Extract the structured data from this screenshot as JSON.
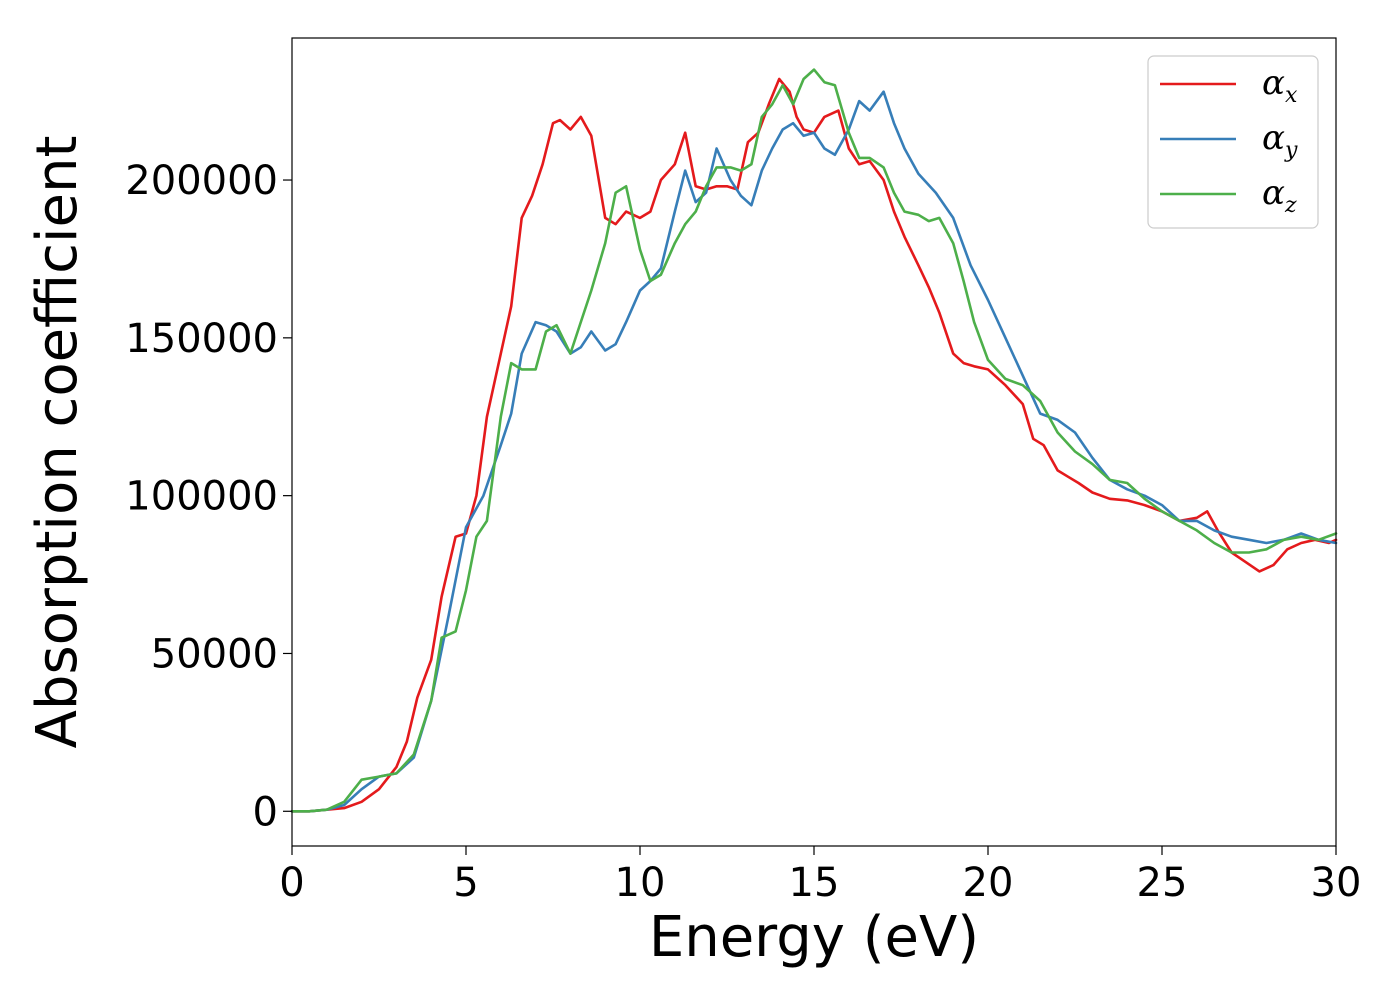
{
  "chart_data": {
    "type": "line",
    "title": "",
    "xlabel": "Energy (eV)",
    "ylabel": "Absorption coefficient",
    "xlim": [
      0,
      30
    ],
    "ylim": [
      -11000,
      245000
    ],
    "xticks": [
      "0",
      "5",
      "10",
      "15",
      "20",
      "25",
      "30"
    ],
    "yticks": [
      "0",
      "50000",
      "100000",
      "150000",
      "200000"
    ],
    "grid": false,
    "legend_position": "top-right",
    "series": [
      {
        "name": "α",
        "subscript": "x",
        "color": "#e41a1c",
        "x": [
          0,
          0.5,
          1,
          1.5,
          2,
          2.5,
          3,
          3.3,
          3.6,
          4,
          4.3,
          4.7,
          5,
          5.3,
          5.6,
          6,
          6.3,
          6.6,
          6.9,
          7.2,
          7.5,
          7.7,
          8,
          8.3,
          8.6,
          9,
          9.3,
          9.6,
          10,
          10.3,
          10.6,
          11,
          11.3,
          11.6,
          11.9,
          12.2,
          12.5,
          12.8,
          13.1,
          13.4,
          13.7,
          14,
          14.3,
          14.5,
          14.7,
          15,
          15.3,
          15.7,
          16,
          16.3,
          16.6,
          17,
          17.3,
          17.6,
          18,
          18.3,
          18.6,
          19,
          19.3,
          19.6,
          20,
          20.5,
          21,
          21.3,
          21.6,
          22,
          22.3,
          22.6,
          23,
          23.5,
          24,
          24.5,
          25,
          25.5,
          26,
          26.3,
          26.6,
          27,
          27.4,
          27.8,
          28.2,
          28.6,
          29,
          29.4,
          29.8,
          30
        ],
        "y": [
          0,
          0,
          500,
          1000,
          3000,
          7000,
          14000,
          22000,
          36000,
          48000,
          68000,
          87000,
          88000,
          100000,
          125000,
          145000,
          160000,
          188000,
          195000,
          205000,
          218000,
          219000,
          216000,
          220000,
          214000,
          188000,
          186000,
          190000,
          188000,
          190000,
          200000,
          205000,
          215000,
          198000,
          197000,
          198000,
          198000,
          197000,
          212000,
          215000,
          224000,
          232000,
          228000,
          220000,
          216000,
          215000,
          220000,
          222000,
          210000,
          205000,
          206000,
          200000,
          190000,
          182000,
          173000,
          166000,
          158000,
          145000,
          142000,
          141000,
          140000,
          135000,
          129000,
          118000,
          116000,
          108000,
          106000,
          104000,
          101000,
          99000,
          98500,
          97000,
          95000,
          92000,
          93000,
          95000,
          89000,
          82000,
          79000,
          76000,
          78000,
          83000,
          85000,
          86000,
          85000,
          86000
        ]
      },
      {
        "name": "α",
        "subscript": "y",
        "color": "#377eb8",
        "x": [
          0,
          0.5,
          1,
          1.5,
          2,
          2.5,
          3,
          3.5,
          4,
          4.5,
          5,
          5.5,
          6,
          6.3,
          6.6,
          7,
          7.3,
          7.6,
          8,
          8.3,
          8.6,
          9,
          9.3,
          9.6,
          10,
          10.3,
          10.6,
          11,
          11.3,
          11.6,
          11.9,
          12.2,
          12.6,
          12.9,
          13.2,
          13.5,
          13.8,
          14.1,
          14.4,
          14.7,
          15,
          15.3,
          15.6,
          16,
          16.3,
          16.6,
          17,
          17.3,
          17.6,
          18,
          18.5,
          19,
          19.5,
          20,
          20.5,
          21,
          21.5,
          22,
          22.5,
          23,
          23.5,
          24,
          24.5,
          25,
          25.5,
          26,
          26.5,
          27,
          27.5,
          28,
          28.5,
          29,
          29.5,
          30
        ],
        "y": [
          0,
          0,
          500,
          2000,
          7000,
          11000,
          12000,
          17000,
          35000,
          62000,
          90000,
          100000,
          116000,
          126000,
          145000,
          155000,
          154000,
          152000,
          145000,
          147000,
          152000,
          146000,
          148000,
          155000,
          165000,
          168000,
          172000,
          190000,
          203000,
          193000,
          196000,
          210000,
          200000,
          195000,
          192000,
          203000,
          210000,
          216000,
          218000,
          214000,
          215000,
          210000,
          208000,
          216000,
          225000,
          222000,
          228000,
          218000,
          210000,
          202000,
          196000,
          188000,
          173000,
          162000,
          150000,
          138000,
          126000,
          124000,
          120000,
          112000,
          105000,
          102000,
          100000,
          97000,
          92000,
          92000,
          89000,
          87000,
          86000,
          85000,
          86000,
          88000,
          86000,
          85000
        ]
      },
      {
        "name": "α",
        "subscript": "z",
        "color": "#4daf4a",
        "x": [
          0,
          0.5,
          1,
          1.5,
          2,
          2.5,
          3,
          3.5,
          4,
          4.3,
          4.7,
          5,
          5.3,
          5.6,
          6,
          6.3,
          6.6,
          7,
          7.3,
          7.6,
          8,
          8.3,
          8.6,
          9,
          9.3,
          9.6,
          10,
          10.3,
          10.6,
          11,
          11.3,
          11.6,
          11.9,
          12.2,
          12.6,
          12.9,
          13.2,
          13.5,
          13.8,
          14.1,
          14.4,
          14.7,
          15,
          15.3,
          15.6,
          16,
          16.3,
          16.6,
          17,
          17.3,
          17.6,
          18,
          18.3,
          18.6,
          19,
          19.3,
          19.6,
          20,
          20.5,
          21,
          21.5,
          22,
          22.5,
          23,
          23.5,
          24,
          24.5,
          25,
          25.5,
          26,
          26.5,
          27,
          27.5,
          28,
          28.5,
          29,
          29.5,
          30
        ],
        "y": [
          0,
          0,
          500,
          3000,
          10000,
          11000,
          12000,
          18000,
          35000,
          55000,
          57000,
          70000,
          87000,
          92000,
          125000,
          142000,
          140000,
          140000,
          152000,
          154000,
          145000,
          155000,
          165000,
          180000,
          196000,
          198000,
          178000,
          168000,
          170000,
          180000,
          186000,
          190000,
          198000,
          204000,
          204000,
          203000,
          205000,
          220000,
          224000,
          230000,
          224000,
          232000,
          235000,
          231000,
          230000,
          215000,
          207000,
          207000,
          204000,
          196000,
          190000,
          189000,
          187000,
          188000,
          180000,
          168000,
          155000,
          143000,
          137000,
          135000,
          130000,
          120000,
          114000,
          110000,
          105000,
          104000,
          99000,
          95000,
          92000,
          89000,
          85000,
          82000,
          82000,
          83000,
          86000,
          87000,
          86000,
          88000
        ]
      }
    ]
  }
}
